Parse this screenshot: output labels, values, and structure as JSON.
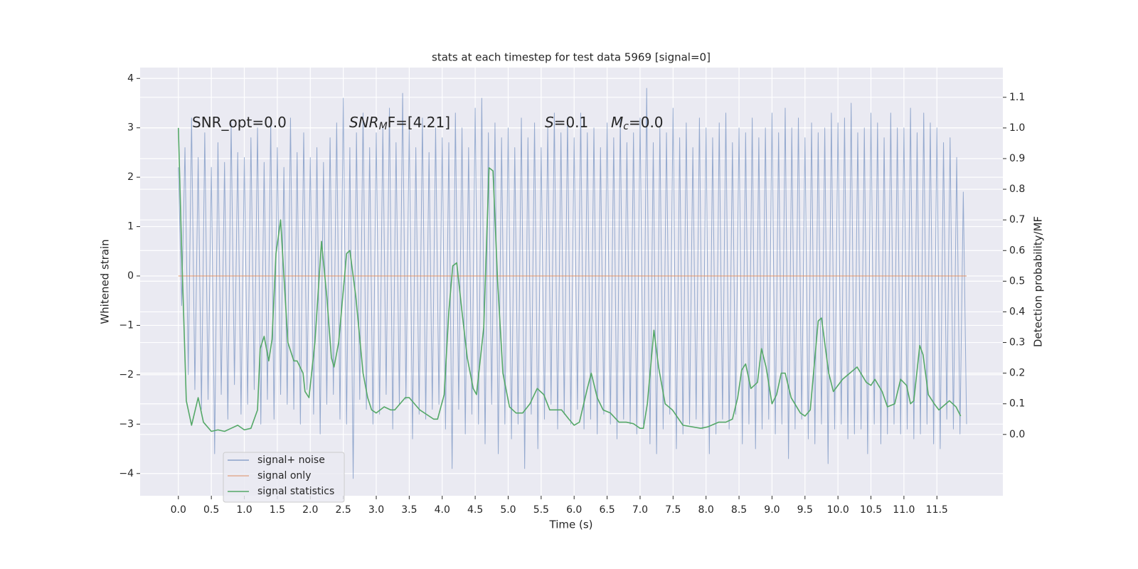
{
  "chart_data": {
    "type": "line",
    "title": "stats at each timestep for test data 5969 [signal=0]",
    "xlabel": "Time (s)",
    "ylabel": "Whitened strain",
    "y2label": "Detection probability/MF",
    "annotations": [
      {
        "base": "SNR_opt=0.0"
      },
      {
        "base": "SNR",
        "sub": "M",
        "rest": "F=[4.21]"
      },
      {
        "base": "S",
        "rest": "=0.1"
      },
      {
        "base": "M",
        "sub": "c",
        "rest": "=0.0"
      }
    ],
    "xlim": [
      -0.58,
      12.5
    ],
    "xticks": [
      {
        "value": 0,
        "label": "0.0"
      },
      0.5,
      {
        "value": 1,
        "label": "1.0"
      },
      1.5,
      {
        "value": 2,
        "label": "2.0"
      },
      2.5,
      {
        "value": 3,
        "label": "3.0"
      },
      3.5,
      {
        "value": 4,
        "label": "4.0"
      },
      4.5,
      {
        "value": 5,
        "label": "5.0"
      },
      5.5,
      {
        "value": 6,
        "label": "6.0"
      },
      6.5,
      {
        "value": 7,
        "label": "7.0"
      },
      7.5,
      {
        "value": 8,
        "label": "8.0"
      },
      8.5,
      {
        "value": 9,
        "label": "9.0"
      },
      9.5,
      {
        "value": 10,
        "label": "10.0"
      },
      10.5,
      {
        "value": 11,
        "label": "11.0"
      },
      11.5
    ],
    "ylim": [
      -4.45,
      4.22
    ],
    "yticks": [
      {
        "value": -4,
        "label": "−4"
      },
      {
        "value": -3,
        "label": "−3"
      },
      {
        "value": -2,
        "label": "−2"
      },
      {
        "value": -1,
        "label": "−1"
      },
      0,
      1,
      2,
      3,
      4
    ],
    "y2lim": [
      -0.2,
      1.197
    ],
    "y2ticks": [
      {
        "value": 0,
        "label": "0.0"
      },
      0.1,
      0.2,
      0.3,
      0.4,
      0.5,
      0.6,
      0.7,
      0.8,
      0.9,
      {
        "value": 1,
        "label": "1.0"
      },
      1.1
    ],
    "grid": true,
    "legend": "lower left",
    "series": [
      {
        "name": "signal+ noise",
        "color": "#4c72b0",
        "x": [
          0,
          0.05,
          0.1,
          0.15,
          0.2,
          0.25,
          0.3,
          0.35,
          0.4,
          0.45,
          0.5,
          0.55,
          0.6,
          0.65,
          0.7,
          0.75,
          0.8,
          0.85,
          0.9,
          0.95,
          1,
          1.05,
          1.1,
          1.15,
          1.2,
          1.25,
          1.3,
          1.35,
          1.4,
          1.45,
          1.5,
          1.55,
          1.6,
          1.65,
          1.7,
          1.75,
          1.8,
          1.85,
          1.9,
          1.95,
          2,
          2.05,
          2.1,
          2.15,
          2.2,
          2.25,
          2.3,
          2.35,
          2.4,
          2.45,
          2.5,
          2.55,
          2.6,
          2.65,
          2.7,
          2.75,
          2.8,
          2.85,
          2.9,
          2.95,
          3,
          3.05,
          3.1,
          3.15,
          3.2,
          3.25,
          3.3,
          3.35,
          3.4,
          3.45,
          3.5,
          3.55,
          3.6,
          3.65,
          3.7,
          3.75,
          3.8,
          3.85,
          3.9,
          3.95,
          4,
          4.05,
          4.1,
          4.15,
          4.2,
          4.25,
          4.3,
          4.35,
          4.4,
          4.45,
          4.5,
          4.55,
          4.6,
          4.65,
          4.7,
          4.75,
          4.8,
          4.85,
          4.9,
          4.95,
          5,
          5.05,
          5.1,
          5.15,
          5.2,
          5.25,
          5.3,
          5.35,
          5.4,
          5.45,
          5.5,
          5.55,
          5.6,
          5.65,
          5.7,
          5.75,
          5.8,
          5.85,
          5.9,
          5.95,
          6,
          6.05,
          6.1,
          6.15,
          6.2,
          6.25,
          6.3,
          6.35,
          6.4,
          6.45,
          6.5,
          6.55,
          6.6,
          6.65,
          6.7,
          6.75,
          6.8,
          6.85,
          6.9,
          6.95,
          7,
          7.05,
          7.1,
          7.15,
          7.2,
          7.25,
          7.3,
          7.35,
          7.4,
          7.45,
          7.5,
          7.55,
          7.6,
          7.65,
          7.7,
          7.75,
          7.8,
          7.85,
          7.9,
          7.95,
          8,
          8.05,
          8.1,
          8.15,
          8.2,
          8.25,
          8.3,
          8.35,
          8.4,
          8.45,
          8.5,
          8.55,
          8.6,
          8.65,
          8.7,
          8.75,
          8.8,
          8.85,
          8.9,
          8.95,
          9,
          9.05,
          9.1,
          9.15,
          9.2,
          9.25,
          9.3,
          9.35,
          9.4,
          9.45,
          9.5,
          9.55,
          9.6,
          9.65,
          9.7,
          9.75,
          9.8,
          9.85,
          9.9,
          9.95,
          10,
          10.05,
          10.1,
          10.15,
          10.2,
          10.25,
          10.3,
          10.35,
          10.4,
          10.45,
          10.5,
          10.55,
          10.6,
          10.65,
          10.7,
          10.75,
          10.8,
          10.85,
          10.9,
          10.95,
          11,
          11.05,
          11.1,
          11.15,
          11.2,
          11.25,
          11.3,
          11.35,
          11.4,
          11.45,
          11.5,
          11.55,
          11.6,
          11.65,
          11.7,
          11.75,
          11.8,
          11.85,
          11.9,
          11.95
        ],
        "values": [
          2.2,
          -0.6,
          2.6,
          -2.0,
          3.2,
          -2.3,
          2.4,
          -2.7,
          2.9,
          -2.5,
          2.2,
          -3.6,
          2.7,
          -2.4,
          2.3,
          -2.9,
          3.1,
          -2.2,
          2.5,
          -2.8,
          2.4,
          -2.6,
          2.8,
          -2.3,
          3.0,
          -3.0,
          2.3,
          -2.5,
          3.1,
          -2.9,
          2.6,
          -2.4,
          2.2,
          -2.6,
          3.2,
          -2.7,
          2.5,
          -3.0,
          2.9,
          -2.3,
          2.4,
          -2.8,
          2.6,
          -3.2,
          2.3,
          -2.6,
          2.8,
          -2.4,
          3.1,
          -2.9,
          3.6,
          -3.0,
          2.6,
          -4.1,
          2.9,
          -2.5,
          3.3,
          -2.7,
          2.6,
          -3.0,
          2.9,
          -2.8,
          3.0,
          -2.4,
          3.4,
          -3.1,
          2.7,
          -2.6,
          3.7,
          -2.5,
          3.0,
          -3.3,
          2.6,
          -2.8,
          3.2,
          -2.9,
          2.5,
          -2.7,
          3.0,
          -2.6,
          2.8,
          -3.1,
          2.7,
          -3.9,
          3.3,
          -2.7,
          3.0,
          -3.2,
          2.6,
          -2.8,
          3.4,
          -3.0,
          3.6,
          -3.4,
          2.9,
          -2.6,
          3.1,
          -3.6,
          2.8,
          -3.0,
          3.0,
          -3.3,
          2.6,
          -3.0,
          3.2,
          -3.9,
          2.8,
          -2.8,
          3.1,
          -3.5,
          2.6,
          -2.9,
          3.0,
          -2.6,
          3.3,
          -3.1,
          2.9,
          -2.8,
          3.2,
          -3.0,
          2.8,
          -2.7,
          3.3,
          -3.1,
          2.9,
          -2.9,
          3.0,
          -3.2,
          2.6,
          -2.8,
          3.1,
          -3.0,
          2.8,
          -3.3,
          3.2,
          -2.9,
          2.7,
          -3.0,
          2.9,
          -3.2,
          3.2,
          -3.0,
          3.8,
          -3.4,
          2.7,
          -3.6,
          3.0,
          -3.1,
          2.9,
          -2.8,
          3.4,
          -3.5,
          2.8,
          -3.2,
          3.1,
          -3.0,
          2.6,
          -2.9,
          3.2,
          -3.1,
          3.0,
          -3.6,
          2.8,
          -3.2,
          3.1,
          -2.9,
          3.3,
          -3.1,
          2.7,
          -2.8,
          3.0,
          -3.4,
          2.9,
          -3.0,
          3.2,
          -3.5,
          2.8,
          -3.1,
          3.0,
          -2.9,
          3.3,
          -3.2,
          2.9,
          -3.0,
          3.4,
          -3.7,
          3.0,
          -3.1,
          3.2,
          -2.9,
          2.8,
          -3.3,
          3.1,
          -3.4,
          2.9,
          -3.0,
          3.0,
          -3.8,
          3.3,
          -3.1,
          3.1,
          -3.0,
          3.2,
          -3.3,
          3.5,
          -3.2,
          2.9,
          -3.1,
          3.0,
          -3.6,
          3.3,
          -3.0,
          3.1,
          -3.4,
          2.8,
          -3.2,
          3.3,
          -3.0,
          3.0,
          -3.2,
          3.0,
          -3.1,
          3.4,
          -3.3,
          2.9,
          -3.2,
          3.3,
          -3.0,
          3.1,
          -3.4,
          3.0,
          -3.5,
          2.7,
          -2.9,
          2.8,
          -3.1,
          2.4,
          -3.2,
          1.7,
          -3.0
        ]
      },
      {
        "name": "signal only",
        "color": "#dd8452",
        "x": [
          0,
          11.95
        ],
        "values": [
          0,
          0
        ]
      },
      {
        "name": "signal statistics",
        "color": "#55a868",
        "axis": "y2",
        "x": [
          0,
          0.05,
          0.12,
          0.2,
          0.3,
          0.38,
          0.5,
          0.6,
          0.7,
          0.8,
          0.9,
          1.0,
          1.1,
          1.2,
          1.24,
          1.3,
          1.37,
          1.42,
          1.48,
          1.55,
          1.66,
          1.75,
          1.8,
          1.89,
          1.92,
          1.98,
          2.07,
          2.17,
          2.25,
          2.32,
          2.36,
          2.43,
          2.55,
          2.6,
          2.69,
          2.8,
          2.87,
          2.93,
          3.0,
          3.12,
          3.22,
          3.28,
          3.44,
          3.5,
          3.66,
          3.87,
          3.93,
          4.03,
          4.1,
          4.16,
          4.22,
          4.3,
          4.38,
          4.47,
          4.52,
          4.63,
          4.71,
          4.77,
          4.84,
          4.92,
          5.02,
          5.12,
          5.22,
          5.33,
          5.44,
          5.54,
          5.63,
          5.81,
          5.92,
          6.0,
          6.08,
          6.2,
          6.26,
          6.35,
          6.44,
          6.55,
          6.68,
          6.79,
          6.9,
          7.0,
          7.05,
          7.11,
          7.21,
          7.28,
          7.38,
          7.49,
          7.65,
          7.92,
          8.03,
          8.19,
          8.3,
          8.4,
          8.48,
          8.54,
          8.6,
          8.68,
          8.78,
          8.84,
          8.91,
          9.0,
          9.07,
          9.14,
          9.2,
          9.29,
          9.43,
          9.5,
          9.58,
          9.7,
          9.75,
          9.86,
          9.93,
          10.07,
          10.18,
          10.29,
          10.43,
          10.5,
          10.56,
          10.67,
          10.75,
          10.86,
          10.95,
          11.04,
          11.1,
          11.15,
          11.24,
          11.29,
          11.37,
          11.46,
          11.53,
          11.69,
          11.79,
          11.86
        ],
        "values": [
          1.0,
          0.6,
          0.11,
          0.03,
          0.12,
          0.04,
          0.01,
          0.015,
          0.01,
          0.02,
          0.03,
          0.015,
          0.02,
          0.08,
          0.28,
          0.32,
          0.24,
          0.31,
          0.59,
          0.7,
          0.3,
          0.24,
          0.24,
          0.2,
          0.14,
          0.12,
          0.3,
          0.63,
          0.45,
          0.25,
          0.22,
          0.3,
          0.59,
          0.6,
          0.45,
          0.2,
          0.12,
          0.08,
          0.07,
          0.09,
          0.08,
          0.08,
          0.12,
          0.12,
          0.08,
          0.05,
          0.05,
          0.13,
          0.4,
          0.55,
          0.56,
          0.4,
          0.25,
          0.15,
          0.13,
          0.35,
          0.87,
          0.86,
          0.5,
          0.2,
          0.09,
          0.07,
          0.07,
          0.1,
          0.15,
          0.13,
          0.08,
          0.08,
          0.05,
          0.03,
          0.04,
          0.15,
          0.2,
          0.12,
          0.08,
          0.07,
          0.04,
          0.04,
          0.035,
          0.02,
          0.02,
          0.1,
          0.34,
          0.22,
          0.1,
          0.08,
          0.03,
          0.02,
          0.025,
          0.04,
          0.04,
          0.05,
          0.12,
          0.21,
          0.23,
          0.15,
          0.17,
          0.28,
          0.22,
          0.1,
          0.13,
          0.2,
          0.2,
          0.12,
          0.07,
          0.06,
          0.08,
          0.37,
          0.38,
          0.2,
          0.14,
          0.18,
          0.2,
          0.22,
          0.17,
          0.16,
          0.18,
          0.14,
          0.09,
          0.1,
          0.18,
          0.16,
          0.1,
          0.11,
          0.29,
          0.26,
          0.13,
          0.1,
          0.08,
          0.11,
          0.09,
          0.06
        ]
      }
    ]
  }
}
